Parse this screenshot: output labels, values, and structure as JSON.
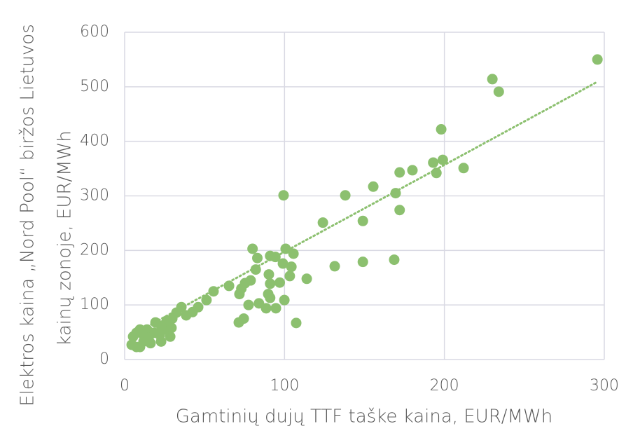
{
  "chart_data": {
    "type": "scatter",
    "xlabel": "Gamtinių dujų TTF taške kaina, EUR/MWh",
    "ylabel": [
      "Elektros kaina „Nord Pool“ biržos Lietuvos",
      "kainų zonoje, EUR/MWh"
    ],
    "xlim": [
      0,
      300
    ],
    "xticks": [
      0,
      100,
      200,
      300
    ],
    "ylim": [
      0,
      600
    ],
    "yticks": [
      0,
      100,
      200,
      300,
      400,
      500,
      600
    ],
    "grid": true,
    "series": [
      {
        "color": "#8cc06f",
        "x": [
          295.7,
          230,
          234,
          198,
          199,
          193,
          195,
          212,
          180,
          172,
          169.5,
          172,
          155.5,
          138,
          99.4,
          149,
          124,
          80,
          100.7,
          105.6,
          99,
          104.3,
          83,
          82,
          91,
          94.3,
          103.3,
          113.9,
          131.4,
          149,
          168.6,
          90.2,
          91,
          97,
          78.8,
          75.3,
          73,
          71.8,
          89.8,
          91,
          88.5,
          84,
          77.5,
          99.9,
          94.6,
          107.3,
          74.5,
          71.4,
          65.3,
          55.6,
          51.2,
          46,
          35.5,
          42.5,
          32.4,
          38.5,
          29.8,
          27.2,
          28.5,
          22.8,
          11.8,
          7.4,
          5.3,
          9.6,
          14,
          19.3,
          18.4,
          16.2,
          25,
          29.3,
          9.6,
          4.4,
          11.8,
          22,
          15,
          7.4,
          26.3,
          22.8
        ],
        "values": [
          550,
          514,
          491,
          422,
          366,
          361,
          342,
          351,
          347,
          343,
          305,
          274,
          317,
          301,
          301,
          254,
          251,
          203,
          203,
          194,
          176,
          170,
          186,
          165,
          190,
          188,
          153,
          148,
          171,
          179,
          183,
          156,
          139,
          141,
          145,
          140,
          130,
          120,
          120,
          113,
          94,
          103,
          100,
          109,
          94,
          67,
          75,
          68,
          135,
          125,
          109,
          96,
          96,
          87,
          86,
          81,
          75,
          62,
          42,
          33,
          33,
          23,
          42,
          55,
          55,
          68,
          49,
          30,
          55,
          58,
          23,
          27,
          45,
          45,
          40,
          49,
          71,
          62
        ]
      }
    ],
    "trendline": {
      "color": "#8cc06f",
      "x": [
        5,
        295
      ],
      "values": [
        46.2,
        508.1
      ]
    }
  }
}
